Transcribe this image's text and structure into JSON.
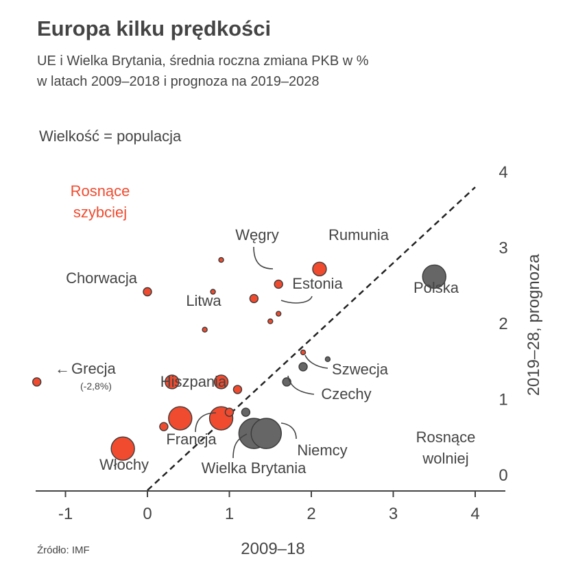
{
  "title": "Europa kilku prędkości",
  "subtitle": [
    "UE i Wielka Brytania, średnia roczna zmiana PKB w %",
    "w latach 2009–2018 i prognoza na 2019–2028"
  ],
  "size_note": "Wielkość = populacja",
  "source": "Źródło: IMF",
  "colors": {
    "above": "#f04b2f",
    "below": "#666666",
    "text": "#444444",
    "axis": "#444444"
  },
  "chart_data": {
    "type": "scatter",
    "xlabel": "2009–18",
    "ylabel": "2019–28, prognoza",
    "xlim": [
      -1.35,
      4.35
    ],
    "ylim": [
      0,
      4.1
    ],
    "x_ticks": [
      "-1",
      "0",
      "1",
      "2",
      "3",
      "4"
    ],
    "y_ticks": [
      "0",
      "1",
      "2",
      "3",
      "4"
    ],
    "diagonal": "y = x",
    "size_encoding": "population",
    "region_labels": {
      "above": [
        "Rosnące",
        "szybciej"
      ],
      "below": [
        "Rosnące",
        "wolniej"
      ]
    },
    "points": [
      {
        "x": 3.5,
        "y": 2.82,
        "group": "below",
        "size": "large",
        "label": "Polska"
      },
      {
        "x": 2.1,
        "y": 2.92,
        "group": "above",
        "size": "medium",
        "label": "Rumunia"
      },
      {
        "x": 1.6,
        "y": 2.72,
        "group": "above",
        "size": "small",
        "label": "Węgry"
      },
      {
        "x": 1.6,
        "y": 2.33,
        "group": "above",
        "size": "tiny",
        "label": "Estonia"
      },
      {
        "x": 0.0,
        "y": 2.62,
        "group": "above",
        "size": "small",
        "label": "Chorwacja"
      },
      {
        "x": 0.7,
        "y": 2.12,
        "group": "above",
        "size": "tiny",
        "label": "Litwa"
      },
      {
        "x": -1.35,
        "y": 1.43,
        "group": "above",
        "size": "small",
        "label": "Grecja",
        "note": "(-2,8%)"
      },
      {
        "x": 0.3,
        "y": 1.43,
        "group": "above",
        "size": "medium",
        "label": "Hiszpania"
      },
      {
        "x": 0.4,
        "y": 0.95,
        "group": "above",
        "size": "large",
        "label": "Francja"
      },
      {
        "x": 0.9,
        "y": 0.95,
        "group": "above",
        "size": "large",
        "label": ""
      },
      {
        "x": -0.3,
        "y": 0.55,
        "group": "above",
        "size": "large",
        "label": "Włochy"
      },
      {
        "x": 1.3,
        "y": 0.75,
        "group": "below",
        "size": "xlarge",
        "label": "Wielka Brytania"
      },
      {
        "x": 1.45,
        "y": 0.75,
        "group": "below",
        "size": "xlarge",
        "label": "Niemcy"
      },
      {
        "x": 1.7,
        "y": 1.43,
        "group": "below",
        "size": "small",
        "label": "Czechy"
      },
      {
        "x": 1.9,
        "y": 1.63,
        "group": "below",
        "size": "small",
        "label": "Szwecja"
      },
      {
        "x": 2.2,
        "y": 1.73,
        "group": "below",
        "size": "tiny",
        "label": ""
      },
      {
        "x": 1.2,
        "y": 1.03,
        "group": "below",
        "size": "small",
        "label": ""
      },
      {
        "x": 0.9,
        "y": 3.04,
        "group": "above",
        "size": "tiny",
        "label": ""
      },
      {
        "x": 0.8,
        "y": 2.62,
        "group": "above",
        "size": "tiny",
        "label": ""
      },
      {
        "x": 1.3,
        "y": 2.53,
        "group": "above",
        "size": "small",
        "label": ""
      },
      {
        "x": 1.5,
        "y": 2.23,
        "group": "above",
        "size": "tiny",
        "label": ""
      },
      {
        "x": 1.9,
        "y": 1.82,
        "group": "above",
        "size": "tiny",
        "label": ""
      },
      {
        "x": 0.9,
        "y": 1.43,
        "group": "above",
        "size": "medium",
        "label": ""
      },
      {
        "x": 1.1,
        "y": 1.33,
        "group": "above",
        "size": "small",
        "label": ""
      },
      {
        "x": 1.0,
        "y": 1.03,
        "group": "above",
        "size": "small",
        "label": ""
      },
      {
        "x": 0.2,
        "y": 0.84,
        "group": "above",
        "size": "small",
        "label": ""
      }
    ]
  }
}
